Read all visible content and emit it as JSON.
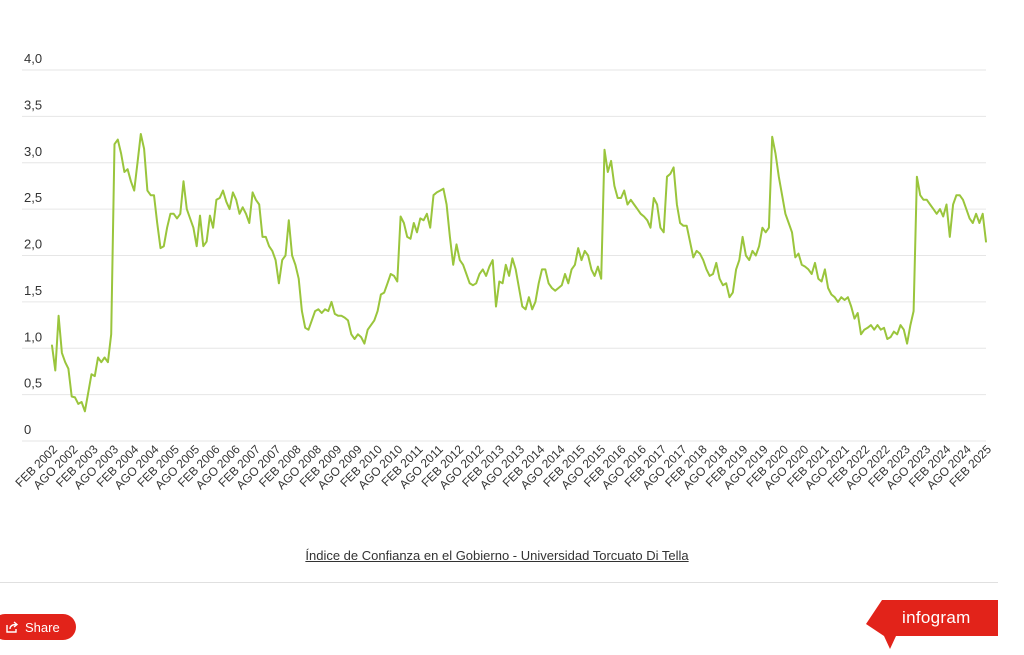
{
  "chart_data": {
    "type": "line",
    "title": "",
    "xlabel": "",
    "ylabel": "",
    "ylim": [
      0,
      4
    ],
    "grid": true,
    "yticks": [
      "0",
      "0,5",
      "1,0",
      "1,5",
      "2,0",
      "2,5",
      "3,0",
      "3,5",
      "4,0"
    ],
    "xticks": [
      "FEB 2002",
      "AGO 2002",
      "FEB 2003",
      "AGO 2003",
      "FEB 2004",
      "AGO 2004",
      "FEB 2005",
      "AGO 2005",
      "FEB 2006",
      "AGO 2006",
      "FEB 2007",
      "AGO 2007",
      "FEB 2008",
      "AGO 2008",
      "FEB 2009",
      "AGO 2009",
      "FEB 2010",
      "AGO 2010",
      "FEB 2011",
      "AGO 2011",
      "FEB 2012",
      "AGO 2012",
      "FEB 2013",
      "AGO 2013",
      "FEB 2014",
      "AGO 2014",
      "FEB 2015",
      "AGO 2015",
      "FEB 2016",
      "AGO 2016",
      "FEB 2017",
      "AGO 2017",
      "FEB 2018",
      "AGO 2018",
      "FEB 2019",
      "AGO 2019",
      "FEB 2020",
      "AGO 2020",
      "FEB 2021",
      "AGO 2021",
      "FEB 2022",
      "AGO 2022",
      "FEB 2023",
      "AGO 2023",
      "FEB 2024",
      "AGO 2024",
      "FEB 2025"
    ],
    "series": [
      {
        "color": "#9ac53c",
        "values": [
          1.03,
          0.76,
          1.35,
          0.95,
          0.85,
          0.78,
          0.48,
          0.47,
          0.4,
          0.42,
          0.32,
          0.52,
          0.72,
          0.7,
          0.9,
          0.85,
          0.9,
          0.85,
          1.15,
          3.2,
          3.25,
          3.1,
          2.9,
          2.93,
          2.8,
          2.7,
          3.0,
          3.31,
          3.15,
          2.7,
          2.65,
          2.65,
          2.35,
          2.08,
          2.1,
          2.3,
          2.45,
          2.45,
          2.4,
          2.45,
          2.8,
          2.5,
          2.4,
          2.3,
          2.1,
          2.43,
          2.1,
          2.15,
          2.43,
          2.3,
          2.6,
          2.62,
          2.7,
          2.58,
          2.5,
          2.68,
          2.6,
          2.45,
          2.52,
          2.45,
          2.35,
          2.68,
          2.6,
          2.55,
          2.2,
          2.2,
          2.1,
          2.05,
          1.95,
          1.7,
          1.95,
          2.0,
          2.38,
          2.0,
          1.9,
          1.75,
          1.4,
          1.22,
          1.2,
          1.3,
          1.4,
          1.42,
          1.38,
          1.42,
          1.4,
          1.5,
          1.37,
          1.35,
          1.35,
          1.33,
          1.3,
          1.15,
          1.1,
          1.15,
          1.12,
          1.05,
          1.2,
          1.25,
          1.3,
          1.4,
          1.58,
          1.6,
          1.7,
          1.8,
          1.78,
          1.72,
          2.42,
          2.35,
          2.2,
          2.18,
          2.35,
          2.25,
          2.4,
          2.38,
          2.45,
          2.3,
          2.65,
          2.68,
          2.7,
          2.72,
          2.55,
          2.2,
          1.9,
          2.12,
          1.95,
          1.9,
          1.8,
          1.7,
          1.68,
          1.7,
          1.8,
          1.85,
          1.78,
          1.88,
          1.95,
          1.45,
          1.72,
          1.7,
          1.9,
          1.78,
          1.97,
          1.85,
          1.65,
          1.45,
          1.42,
          1.55,
          1.42,
          1.5,
          1.7,
          1.85,
          1.85,
          1.7,
          1.65,
          1.62,
          1.65,
          1.68,
          1.8,
          1.7,
          1.85,
          1.9,
          2.08,
          1.95,
          2.05,
          2.0,
          1.85,
          1.78,
          1.88,
          1.75,
          3.14,
          2.9,
          3.02,
          2.75,
          2.62,
          2.62,
          2.7,
          2.55,
          2.6,
          2.55,
          2.5,
          2.45,
          2.42,
          2.38,
          2.3,
          2.62,
          2.55,
          2.3,
          2.25,
          2.85,
          2.88,
          2.95,
          2.55,
          2.35,
          2.32,
          2.32,
          2.15,
          1.98,
          2.05,
          2.02,
          1.95,
          1.85,
          1.78,
          1.8,
          1.92,
          1.75,
          1.68,
          1.7,
          1.55,
          1.6,
          1.85,
          1.95,
          2.2,
          2.0,
          1.95,
          2.05,
          2.0,
          2.1,
          2.3,
          2.25,
          2.3,
          3.28,
          3.1,
          2.85,
          2.65,
          2.45,
          2.35,
          2.25,
          1.98,
          2.02,
          1.9,
          1.88,
          1.85,
          1.8,
          1.92,
          1.75,
          1.72,
          1.85,
          1.65,
          1.58,
          1.55,
          1.5,
          1.55,
          1.52,
          1.55,
          1.45,
          1.32,
          1.38,
          1.15,
          1.2,
          1.22,
          1.25,
          1.2,
          1.25,
          1.2,
          1.22,
          1.1,
          1.12,
          1.18,
          1.15,
          1.25,
          1.2,
          1.05,
          1.25,
          1.4,
          2.85,
          2.65,
          2.6,
          2.6,
          2.55,
          2.5,
          2.45,
          2.5,
          2.42,
          2.55,
          2.2,
          2.55,
          2.65,
          2.65,
          2.6,
          2.5,
          2.4,
          2.35,
          2.45,
          2.35,
          2.45,
          2.15
        ]
      }
    ]
  },
  "footer": {
    "source_label": "Índice de Confianza en el Gobierno - Universidad Torcuato Di Tella",
    "share_label": "Share",
    "brand_label": "infogram",
    "brand_color": "#e2231a"
  }
}
